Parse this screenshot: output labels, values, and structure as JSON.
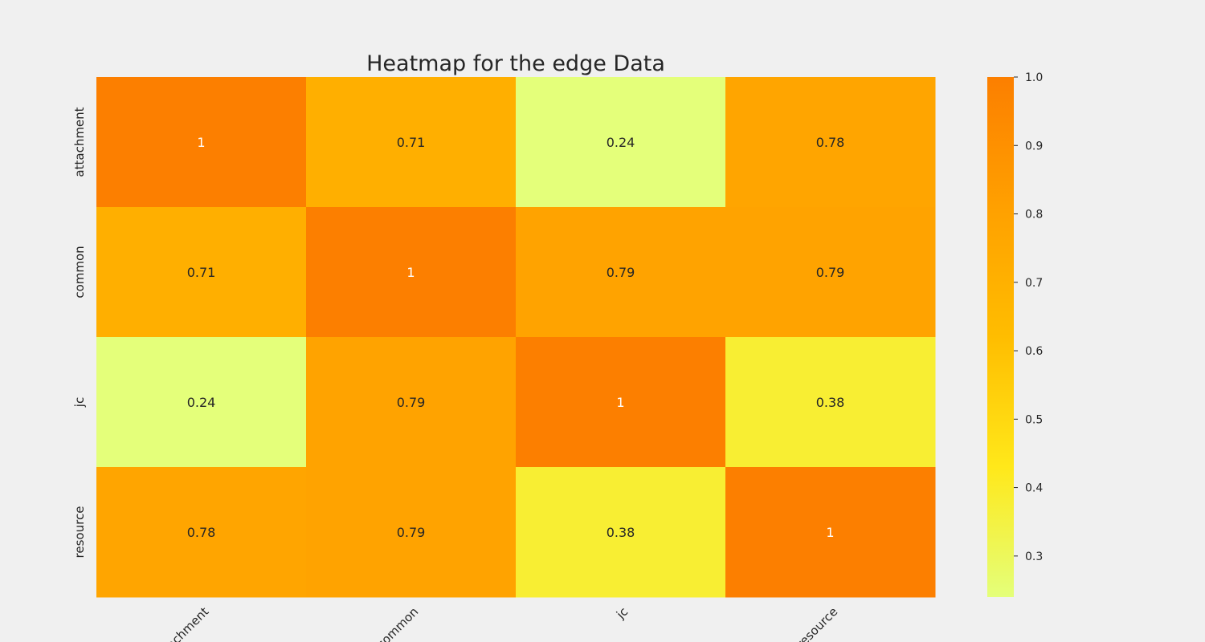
{
  "chart_data": {
    "type": "heatmap",
    "title": "Heatmap for the edge Data",
    "xlabel": "",
    "ylabel": "",
    "row_labels": [
      "attachment",
      "common",
      "jc",
      "resource"
    ],
    "col_labels": [
      "attachment",
      "common",
      "jc",
      "resource"
    ],
    "values": [
      [
        1.0,
        0.71,
        0.24,
        0.78
      ],
      [
        0.71,
        1.0,
        0.79,
        0.79
      ],
      [
        0.24,
        0.79,
        1.0,
        0.38
      ],
      [
        0.78,
        0.79,
        0.38,
        1.0
      ]
    ],
    "cell_labels": [
      [
        "1",
        "0.71",
        "0.24",
        "0.78"
      ],
      [
        "0.71",
        "1",
        "0.79",
        "0.79"
      ],
      [
        "0.24",
        "0.79",
        "1",
        "0.38"
      ],
      [
        "0.78",
        "0.79",
        "0.38",
        "1"
      ]
    ],
    "colormap": "Wistia",
    "colormap_stops": [
      "#e4ff7a",
      "#ffe81a",
      "#ffbd00",
      "#ffa000",
      "#fc7f00"
    ],
    "vmin": 0.24,
    "vmax": 1.0,
    "colorbar_ticks": [
      "0.3",
      "0.4",
      "0.5",
      "0.6",
      "0.7",
      "0.8",
      "0.9",
      "1.0"
    ],
    "background_color": "#f0f0f0",
    "text_color": "#262626",
    "highlight_text_color": "#ffffff",
    "grid": false,
    "legend": "colorbar-right"
  }
}
